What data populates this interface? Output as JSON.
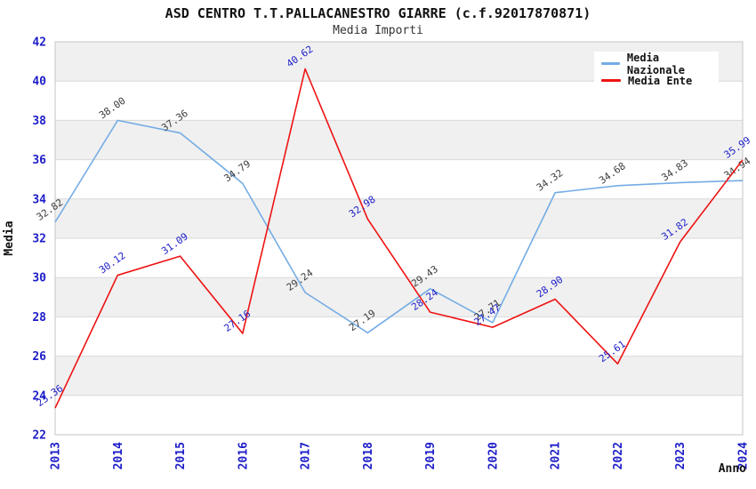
{
  "chart_data": {
    "type": "line",
    "title": "ASD CENTRO T.T.PALLACANESTRO GIARRE (c.f.92017870871)",
    "subtitle": "Media Importi",
    "xlabel": "Anno",
    "ylabel": "Media",
    "categories": [
      "2013",
      "2014",
      "2015",
      "2016",
      "2017",
      "2018",
      "2019",
      "2020",
      "2021",
      "2022",
      "2023",
      "2024"
    ],
    "ylim": [
      22,
      42
    ],
    "ytick_step": 2,
    "grid": "horizontal",
    "background_bands": true,
    "legend_position": "top-right",
    "series": [
      {
        "name": "Media Nazionale",
        "color": "#74ace4",
        "label_color": "#3c3c3c",
        "values": [
          32.82,
          38.0,
          37.36,
          34.79,
          29.24,
          27.19,
          29.43,
          27.71,
          34.32,
          34.68,
          34.83,
          34.94
        ]
      },
      {
        "name": "Media Ente",
        "color": "#ee1313",
        "label_color": "#1d1dc8",
        "values": [
          23.36,
          30.12,
          31.09,
          27.16,
          40.62,
          32.98,
          28.24,
          27.47,
          28.9,
          25.61,
          31.82,
          35.99
        ]
      }
    ],
    "colors": {
      "tick_label": "#1d1dc8",
      "band": "#f0f0f0",
      "gridline": "#d9d9d9",
      "plot_border": "#c6c6c6",
      "axis_title": "#111111",
      "title": "#111111",
      "subtitle": "#333333",
      "legend_text": "#111111",
      "legend_bg": "#ffffff"
    }
  }
}
